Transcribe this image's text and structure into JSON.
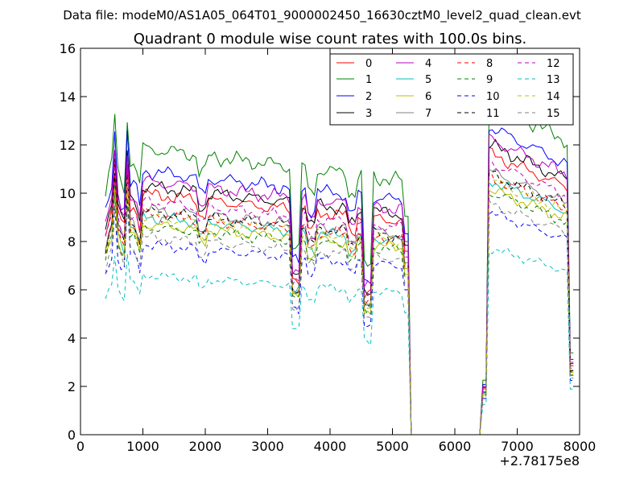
{
  "chart_data": {
    "type": "line",
    "suptitle": "Data file: modeM0/AS1A05_064T01_9000002450_16630cztM0_level2_quad_clean.evt",
    "title": "Quadrant 0 module wise count rates with 100.0s bins.",
    "xlabel": "",
    "ylabel": "",
    "offset_label": "+2.78175e8",
    "xlim": [
      0,
      8000
    ],
    "ylim": [
      0,
      16
    ],
    "xticks": [
      0,
      1000,
      2000,
      3000,
      4000,
      5000,
      6000,
      7000,
      8000
    ],
    "yticks": [
      0,
      2,
      4,
      6,
      8,
      10,
      12,
      14,
      16
    ],
    "xtick_labels": [
      "0",
      "1000",
      "2000",
      "3000",
      "4000",
      "5000",
      "6000",
      "7000",
      "8000"
    ],
    "ytick_labels": [
      "0",
      "2",
      "4",
      "6",
      "8",
      "10",
      "12",
      "14",
      "16"
    ],
    "legend_position": "top-right",
    "legend_columns": 4,
    "segments": [
      {
        "x_start": 400,
        "x_end": 5300,
        "step": 50
      },
      {
        "x_start": 6400,
        "x_end": 7900,
        "step": 50
      }
    ],
    "series": [
      {
        "name": "0",
        "color": "#ff0000",
        "dash": "solid",
        "level": 9.5,
        "peak": 11.2
      },
      {
        "name": "1",
        "color": "#008000",
        "dash": "solid",
        "level": 11.3,
        "peak": 13.2
      },
      {
        "name": "2",
        "color": "#0000ff",
        "dash": "solid",
        "level": 10.4,
        "peak": 12.5
      },
      {
        "name": "3",
        "color": "#000000",
        "dash": "solid",
        "level": 9.8,
        "peak": 11.6
      },
      {
        "name": "4",
        "color": "#bf00bf",
        "dash": "solid",
        "level": 10.0,
        "peak": 11.5
      },
      {
        "name": "5",
        "color": "#00bfbf",
        "dash": "solid",
        "level": 8.6,
        "peak": 10.5
      },
      {
        "name": "6",
        "color": "#bfbf00",
        "dash": "solid",
        "level": 8.3,
        "peak": 10.2
      },
      {
        "name": "7",
        "color": "#808080",
        "dash": "solid",
        "level": 8.9,
        "peak": 10.8
      },
      {
        "name": "8",
        "color": "#ff0000",
        "dash": "dashed",
        "level": 8.7,
        "peak": 10.6
      },
      {
        "name": "9",
        "color": "#008000",
        "dash": "dashed",
        "level": 8.2,
        "peak": 10.0
      },
      {
        "name": "10",
        "color": "#0000ff",
        "dash": "dashed",
        "level": 7.5,
        "peak": 9.5
      },
      {
        "name": "11",
        "color": "#000000",
        "dash": "dashed",
        "level": 8.8,
        "peak": 10.8
      },
      {
        "name": "12",
        "color": "#bf00bf",
        "dash": "dashed",
        "level": 9.2,
        "peak": 11.0
      },
      {
        "name": "13",
        "color": "#00bfbf",
        "dash": "dashed",
        "level": 6.3,
        "peak": 7.5
      },
      {
        "name": "14",
        "color": "#bfbf00",
        "dash": "dashed",
        "level": 8.6,
        "peak": 10.3
      },
      {
        "name": "15",
        "color": "#808080",
        "dash": "dashed",
        "level": 7.8,
        "peak": 9.5
      }
    ]
  }
}
